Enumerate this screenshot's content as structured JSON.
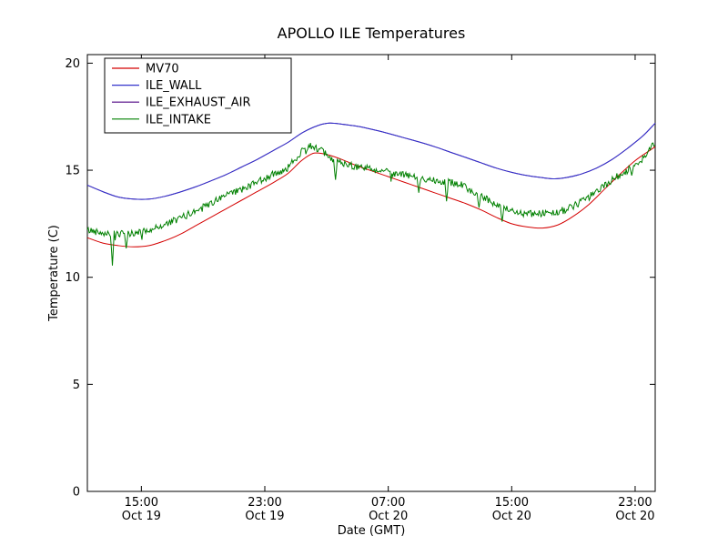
{
  "chart_data": {
    "type": "line",
    "title": "APOLLO ILE Temperatures",
    "xlabel": "Date (GMT)",
    "ylabel": "Temperature (C)",
    "ylim": [
      0,
      20.4
    ],
    "xlim": [
      11.5,
      48.3
    ],
    "yticks": [
      0,
      5,
      10,
      15,
      20
    ],
    "xticks": [
      {
        "hour": 15,
        "time": "15:00",
        "date": "Oct 19"
      },
      {
        "hour": 23,
        "time": "23:00",
        "date": "Oct 19"
      },
      {
        "hour": 31,
        "time": "07:00",
        "date": "Oct 20"
      },
      {
        "hour": 39,
        "time": "15:00",
        "date": "Oct 20"
      },
      {
        "hour": 47,
        "time": "23:00",
        "date": "Oct 20"
      }
    ],
    "grid": false,
    "legend_position": "upper left",
    "series": [
      {
        "name": "MV70",
        "color": "#d40000",
        "style": "smooth",
        "z": 2,
        "points": [
          [
            11.5,
            11.85
          ],
          [
            12.5,
            11.6
          ],
          [
            13.5,
            11.48
          ],
          [
            14.5,
            11.42
          ],
          [
            15.5,
            11.48
          ],
          [
            16.5,
            11.7
          ],
          [
            17.5,
            12.0
          ],
          [
            18.5,
            12.4
          ],
          [
            19.5,
            12.8
          ],
          [
            20.5,
            13.2
          ],
          [
            21.5,
            13.6
          ],
          [
            22.5,
            14.0
          ],
          [
            23.5,
            14.4
          ],
          [
            24.5,
            14.85
          ],
          [
            25.3,
            15.4
          ],
          [
            26,
            15.75
          ],
          [
            26.5,
            15.8
          ],
          [
            27.2,
            15.7
          ],
          [
            28,
            15.5
          ],
          [
            29,
            15.2
          ],
          [
            30,
            14.95
          ],
          [
            31,
            14.7
          ],
          [
            32,
            14.45
          ],
          [
            33,
            14.2
          ],
          [
            34,
            13.95
          ],
          [
            35,
            13.7
          ],
          [
            36,
            13.45
          ],
          [
            37,
            13.15
          ],
          [
            38,
            12.8
          ],
          [
            39,
            12.5
          ],
          [
            40,
            12.35
          ],
          [
            41,
            12.3
          ],
          [
            42,
            12.45
          ],
          [
            43,
            12.85
          ],
          [
            44,
            13.4
          ],
          [
            45,
            14.1
          ],
          [
            46,
            14.8
          ],
          [
            47,
            15.45
          ],
          [
            48,
            15.95
          ],
          [
            48.3,
            16.1
          ]
        ]
      },
      {
        "name": "ILE_WALL",
        "color": "#3333cc",
        "style": "smooth",
        "z": 1,
        "points": [
          [
            11.5,
            14.3
          ],
          [
            12.5,
            14.0
          ],
          [
            13.5,
            13.75
          ],
          [
            14.5,
            13.65
          ],
          [
            15.5,
            13.65
          ],
          [
            16.5,
            13.78
          ],
          [
            17.5,
            13.98
          ],
          [
            18.5,
            14.22
          ],
          [
            19.5,
            14.5
          ],
          [
            20.5,
            14.8
          ],
          [
            21.5,
            15.15
          ],
          [
            22.5,
            15.5
          ],
          [
            23.5,
            15.9
          ],
          [
            24.5,
            16.3
          ],
          [
            25.5,
            16.78
          ],
          [
            26.5,
            17.1
          ],
          [
            27.2,
            17.2
          ],
          [
            28,
            17.15
          ],
          [
            29,
            17.05
          ],
          [
            30,
            16.9
          ],
          [
            31,
            16.72
          ],
          [
            32,
            16.52
          ],
          [
            33,
            16.32
          ],
          [
            34,
            16.1
          ],
          [
            35,
            15.85
          ],
          [
            36,
            15.6
          ],
          [
            37,
            15.35
          ],
          [
            38,
            15.1
          ],
          [
            39,
            14.9
          ],
          [
            40,
            14.75
          ],
          [
            41,
            14.65
          ],
          [
            41.8,
            14.6
          ],
          [
            42.5,
            14.65
          ],
          [
            43.5,
            14.82
          ],
          [
            44.5,
            15.1
          ],
          [
            45.5,
            15.5
          ],
          [
            46.5,
            16.02
          ],
          [
            47.5,
            16.6
          ],
          [
            48.3,
            17.2
          ]
        ]
      },
      {
        "name": "ILE_EXHAUST_AIR",
        "color": "#4b0082",
        "style": "smooth",
        "z": 0,
        "points": [
          [
            11.5,
            14.3
          ],
          [
            12.5,
            14.0
          ],
          [
            13.5,
            13.75
          ],
          [
            14.5,
            13.65
          ],
          [
            15.5,
            13.65
          ],
          [
            16.5,
            13.78
          ],
          [
            17.5,
            13.98
          ],
          [
            18.5,
            14.22
          ],
          [
            19.5,
            14.5
          ],
          [
            20.5,
            14.8
          ],
          [
            21.5,
            15.15
          ],
          [
            22.5,
            15.5
          ],
          [
            23.5,
            15.9
          ],
          [
            24.5,
            16.3
          ],
          [
            25.5,
            16.78
          ],
          [
            26.5,
            17.1
          ],
          [
            27.2,
            17.2
          ],
          [
            28,
            17.15
          ],
          [
            29,
            17.05
          ],
          [
            30,
            16.9
          ],
          [
            31,
            16.72
          ],
          [
            32,
            16.52
          ],
          [
            33,
            16.32
          ],
          [
            34,
            16.1
          ],
          [
            35,
            15.85
          ],
          [
            36,
            15.6
          ],
          [
            37,
            15.35
          ],
          [
            38,
            15.1
          ],
          [
            39,
            14.9
          ],
          [
            40,
            14.75
          ],
          [
            41,
            14.65
          ],
          [
            41.8,
            14.6
          ],
          [
            42.5,
            14.65
          ],
          [
            43.5,
            14.82
          ],
          [
            44.5,
            15.1
          ],
          [
            45.5,
            15.5
          ],
          [
            46.5,
            16.02
          ],
          [
            47.5,
            16.6
          ],
          [
            48.3,
            17.2
          ]
        ]
      },
      {
        "name": "ILE_INTAKE",
        "color": "#008000",
        "style": "noisy",
        "z": 3,
        "noise_amplitude": 0.17,
        "points": [
          [
            11.5,
            12.2
          ],
          [
            12.5,
            12.1
          ],
          [
            13.5,
            12.0
          ],
          [
            14.5,
            12.05
          ],
          [
            15.5,
            12.2
          ],
          [
            16.5,
            12.45
          ],
          [
            17.5,
            12.75
          ],
          [
            18.5,
            13.1
          ],
          [
            19.5,
            13.45
          ],
          [
            20.5,
            13.8
          ],
          [
            21.5,
            14.1
          ],
          [
            22.5,
            14.45
          ],
          [
            23.5,
            14.8
          ],
          [
            24.5,
            15.1
          ],
          [
            25,
            15.55
          ],
          [
            25.5,
            16.0
          ],
          [
            26,
            16.15
          ],
          [
            26.5,
            16.0
          ],
          [
            27,
            15.7
          ],
          [
            27.5,
            15.45
          ],
          [
            28.5,
            15.25
          ],
          [
            29.5,
            15.1
          ],
          [
            30.5,
            15.0
          ],
          [
            31.5,
            14.85
          ],
          [
            32.5,
            14.7
          ],
          [
            33.5,
            14.6
          ],
          [
            34.5,
            14.5
          ],
          [
            35.5,
            14.4
          ],
          [
            36.5,
            14.0
          ],
          [
            37.5,
            13.6
          ],
          [
            38.5,
            13.2
          ],
          [
            39.5,
            13.0
          ],
          [
            40.5,
            12.95
          ],
          [
            41.5,
            13.0
          ],
          [
            42.5,
            13.15
          ],
          [
            43.5,
            13.5
          ],
          [
            44.5,
            14.0
          ],
          [
            45.5,
            14.55
          ],
          [
            46.5,
            15.0
          ],
          [
            47.5,
            15.55
          ],
          [
            48.3,
            16.3
          ]
        ],
        "spikes": [
          [
            13.1,
            10.55
          ],
          [
            14.0,
            11.35
          ],
          [
            27.6,
            14.55
          ],
          [
            33.0,
            13.95
          ],
          [
            34.8,
            13.55
          ],
          [
            36.9,
            13.25
          ],
          [
            38.4,
            12.6
          ],
          [
            46.8,
            14.75
          ]
        ]
      }
    ]
  }
}
